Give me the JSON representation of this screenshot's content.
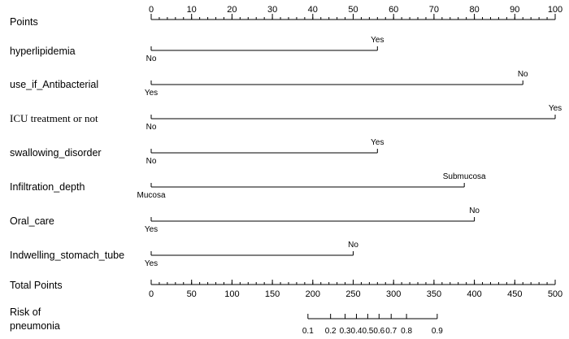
{
  "chart_data": {
    "type": "nomogram",
    "points_axis": {
      "label": "Points",
      "range": [
        0,
        100
      ],
      "major_ticks": [
        0,
        10,
        20,
        30,
        40,
        50,
        60,
        70,
        80,
        90,
        100
      ],
      "minor_step": 2
    },
    "variables": [
      {
        "name": "hyperlipidemia",
        "levels": [
          {
            "label": "No",
            "points": 0
          },
          {
            "label": "Yes",
            "points": 56
          }
        ]
      },
      {
        "name": "use_if_Antibacterial",
        "levels": [
          {
            "label": "Yes",
            "points": 0
          },
          {
            "label": "No",
            "points": 92
          }
        ]
      },
      {
        "name": "ICU treatment or not",
        "levels": [
          {
            "label": "No",
            "points": 0
          },
          {
            "label": "Yes",
            "points": 100
          }
        ]
      },
      {
        "name": "swallowing_disorder",
        "levels": [
          {
            "label": "No",
            "points": 0
          },
          {
            "label": "Yes",
            "points": 56
          }
        ]
      },
      {
        "name": "Infiltration_depth",
        "levels": [
          {
            "label": "Mucosa",
            "points": 0
          },
          {
            "label": "Submucosa",
            "points": 77.5
          }
        ]
      },
      {
        "name": "Oral_care",
        "levels": [
          {
            "label": "Yes",
            "points": 0
          },
          {
            "label": "No",
            "points": 80
          }
        ]
      },
      {
        "name": "Indwelling_stomach_tube",
        "levels": [
          {
            "label": "Yes",
            "points": 0
          },
          {
            "label": "No",
            "points": 50
          }
        ]
      }
    ],
    "total_points_axis": {
      "label": "Total Points",
      "range": [
        0,
        500
      ],
      "major_ticks": [
        0,
        50,
        100,
        150,
        200,
        250,
        300,
        350,
        400,
        450,
        500
      ],
      "minor_step": 10
    },
    "risk_axis": {
      "label": "Risk of pneumonia",
      "label_lines": [
        "Risk of",
        "pneumonia"
      ],
      "ticks": [
        {
          "label": "0.1",
          "total_points": 194
        },
        {
          "label": "0.2",
          "total_points": 222
        },
        {
          "label": "0.3",
          "total_points": 240
        },
        {
          "label": "0.4",
          "total_points": 254
        },
        {
          "label": "0.5",
          "total_points": 268
        },
        {
          "label": "0.6",
          "total_points": 282
        },
        {
          "label": "0.7",
          "total_points": 297
        },
        {
          "label": "0.8",
          "total_points": 316
        },
        {
          "label": "0.9",
          "total_points": 354
        }
      ]
    }
  }
}
